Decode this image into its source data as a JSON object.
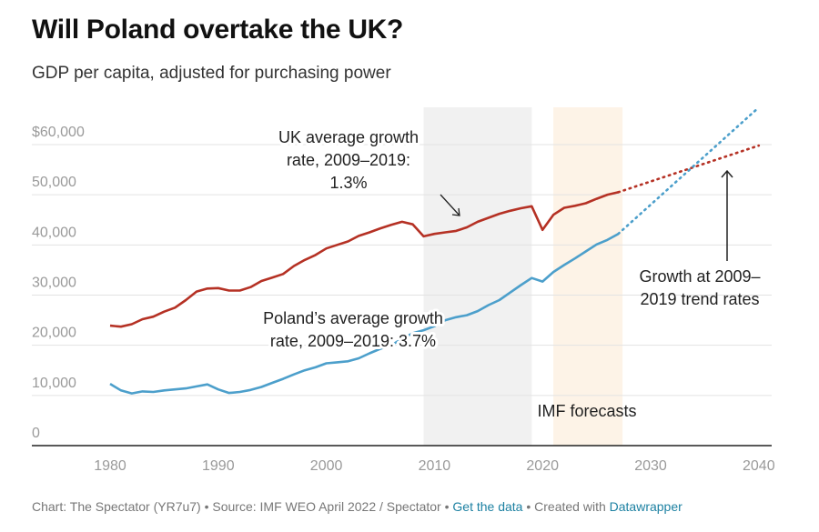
{
  "title": "Will Poland overtake the UK?",
  "subtitle": "GDP per capita, adjusted for purchasing power",
  "chart_data": {
    "type": "line",
    "title": "Will Poland overtake the UK?",
    "subtitle": "GDP per capita, adjusted for purchasing power",
    "xlim": [
      1974,
      2041
    ],
    "ylim": [
      0,
      68000
    ],
    "x_ticks": [
      1980,
      1990,
      2000,
      2010,
      2020,
      2030,
      2040
    ],
    "y_ticks": [
      0,
      10000,
      20000,
      30000,
      40000,
      50000,
      60000
    ],
    "y_tick_labels": [
      "0",
      "10,000",
      "20,000",
      "30,000",
      "40,000",
      "50,000",
      "$60,000"
    ],
    "grid": "horizontal",
    "shaded_regions": [
      {
        "from": 2009,
        "to": 2019,
        "color": "#f1f1f1"
      },
      {
        "from": 2021,
        "to": 2027.4,
        "color": "#fdf3e7"
      }
    ],
    "series": [
      {
        "key": "uk",
        "color": "#b53124",
        "x": [
          1980,
          1981,
          1982,
          1983,
          1984,
          1985,
          1986,
          1987,
          1988,
          1989,
          1990,
          1991,
          1992,
          1993,
          1994,
          1995,
          1996,
          1997,
          1998,
          1999,
          2000,
          2001,
          2002,
          2003,
          2004,
          2005,
          2006,
          2007,
          2008,
          2009,
          2010,
          2011,
          2012,
          2013,
          2014,
          2015,
          2016,
          2017,
          2018,
          2019,
          2020,
          2021,
          2022,
          2023,
          2024,
          2025,
          2026,
          2027
        ],
        "values": [
          23900,
          23700,
          24200,
          25200,
          25700,
          26700,
          27500,
          29000,
          30700,
          31300,
          31400,
          30900,
          30900,
          31600,
          32800,
          33500,
          34200,
          35800,
          37000,
          38000,
          39300,
          40000,
          40700,
          41800,
          42500,
          43300,
          44000,
          44600,
          44100,
          41700,
          42200,
          42500,
          42800,
          43500,
          44600,
          45400,
          46200,
          46800,
          47300,
          47700,
          43000,
          46000,
          47400,
          47800,
          48300,
          49200,
          50000,
          50500
        ],
        "projection": {
          "x": [
            2027,
            2040
          ],
          "values": [
            50500,
            59800
          ],
          "style": "dotted"
        }
      },
      {
        "key": "poland",
        "color": "#4c9fcb",
        "x": [
          1980,
          1981,
          1982,
          1983,
          1984,
          1985,
          1986,
          1987,
          1988,
          1989,
          1990,
          1991,
          1992,
          1993,
          1994,
          1995,
          1996,
          1997,
          1998,
          1999,
          2000,
          2001,
          2002,
          2003,
          2004,
          2005,
          2006,
          2007,
          2008,
          2009,
          2010,
          2011,
          2012,
          2013,
          2014,
          2015,
          2016,
          2017,
          2018,
          2019,
          2020,
          2021,
          2022,
          2023,
          2024,
          2025,
          2026,
          2027
        ],
        "values": [
          12300,
          11000,
          10400,
          10800,
          10700,
          11000,
          11200,
          11400,
          11800,
          12200,
          11200,
          10500,
          10700,
          11100,
          11700,
          12500,
          13300,
          14200,
          15000,
          15600,
          16400,
          16600,
          16800,
          17400,
          18400,
          19300,
          20000,
          21300,
          22400,
          23000,
          23800,
          25000,
          25600,
          26000,
          26800,
          28000,
          29000,
          30500,
          32000,
          33400,
          32700,
          34600,
          36000,
          37300,
          38700,
          40100,
          41000,
          42200
        ],
        "projection": {
          "x": [
            2027,
            2040
          ],
          "values": [
            42200,
            67400
          ],
          "style": "dotted"
        }
      }
    ],
    "annotations": {
      "uk": [
        "UK average growth",
        "rate, 2009–2019:",
        "1.3%"
      ],
      "poland": [
        "Poland’s average growth",
        "rate, 2009–2019: 3.7%"
      ],
      "trend": [
        "Growth at 2009–",
        "2019 trend rates"
      ],
      "imf": "IMF forecasts"
    }
  },
  "footer": {
    "prefix": "Chart: The Spectator (YR7u7) • Source: IMF WEO April 2022 / Spectator • ",
    "get_data": "Get the data",
    "middle": " • Created with ",
    "datawrapper": "Datawrapper"
  }
}
